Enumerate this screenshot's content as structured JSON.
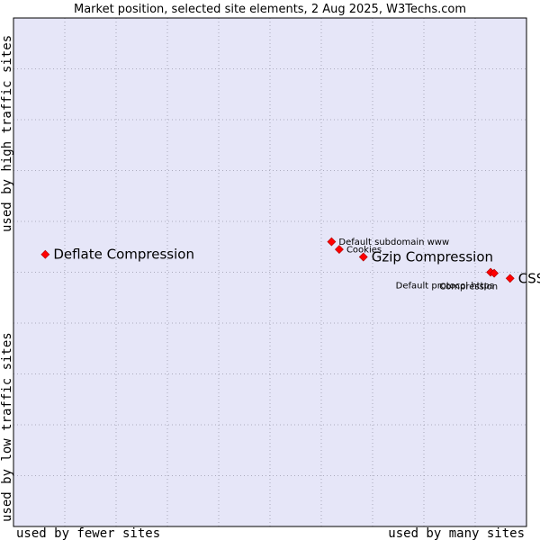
{
  "chart_data": {
    "type": "scatter",
    "title": "Market position, selected site elements, 2 Aug 2025, W3Techs.com",
    "xlabel_left": "used by fewer sites",
    "xlabel_right": "used by many sites",
    "ylabel_top": "used by high traffic sites",
    "ylabel_bottom": "used by low traffic sites",
    "xlim": [
      0,
      10
    ],
    "ylim": [
      0,
      10
    ],
    "grid": true,
    "colors": {
      "plot_background": "#e6e6f8",
      "grid": "#9999aa",
      "marker": "#ff0000",
      "marker_edge": "#aa0000"
    },
    "points": [
      {
        "name": "Deflate Compression",
        "x": 0.62,
        "y": 5.35,
        "size": "large",
        "anchor": "right"
      },
      {
        "name": "Default subdomain www",
        "x": 6.2,
        "y": 5.6,
        "size": "small",
        "anchor": "right"
      },
      {
        "name": "Cookies",
        "x": 6.35,
        "y": 5.45,
        "size": "small",
        "anchor": "right"
      },
      {
        "name": "Gzip Compression",
        "x": 6.82,
        "y": 5.3,
        "size": "large",
        "anchor": "right"
      },
      {
        "name": "Default protocol https",
        "x": 9.3,
        "y": 5.0,
        "size": "small",
        "anchor": "below-left"
      },
      {
        "name": "Compression",
        "x": 9.37,
        "y": 4.98,
        "size": "small",
        "anchor": "below-left"
      },
      {
        "name": "CSS",
        "x": 9.68,
        "y": 4.88,
        "size": "large",
        "anchor": "right"
      }
    ]
  }
}
